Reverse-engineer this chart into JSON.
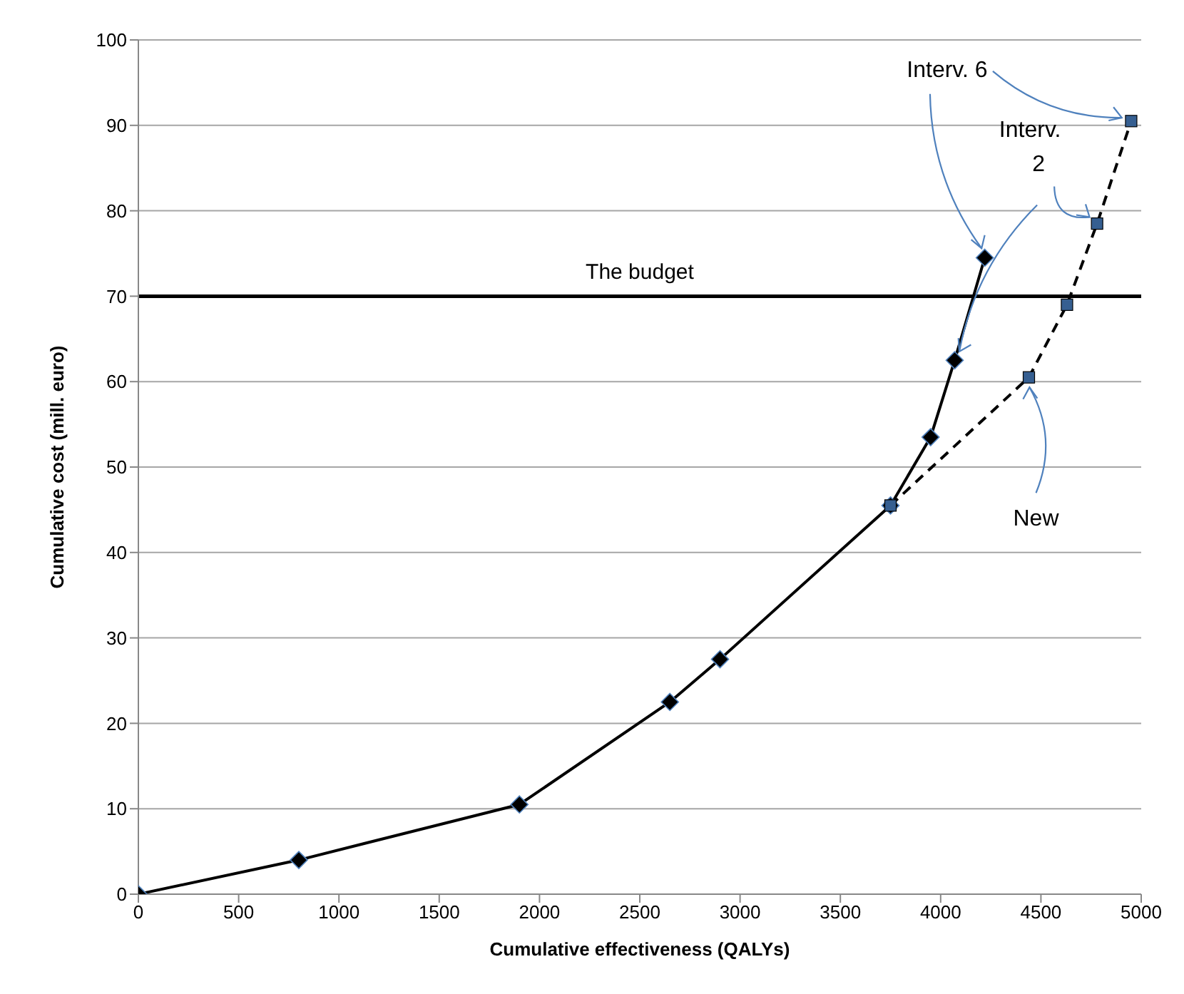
{
  "chart_data": {
    "type": "line",
    "xlabel": "Cumulative effectiveness (QALYs)",
    "ylabel": "Cumulative cost (mill. euro)",
    "xlim": [
      0,
      5000
    ],
    "xticks": [
      0,
      500,
      1000,
      1500,
      2000,
      2500,
      3000,
      3500,
      4000,
      4500,
      5000
    ],
    "ylim": [
      0,
      100
    ],
    "yticks": [
      0,
      10,
      20,
      30,
      40,
      50,
      60,
      70,
      80,
      90,
      100
    ],
    "grid": "y",
    "series": [
      {
        "color": "#000000",
        "marker": "diamond",
        "line_style": "solid",
        "x": [
          0,
          800,
          1900,
          2650,
          2900,
          3750,
          3950,
          4070,
          4220
        ],
        "values": [
          0,
          4,
          10.5,
          22.5,
          27.5,
          45.5,
          53.5,
          62.5,
          74.5
        ]
      },
      {
        "color": "#000000",
        "marker": "square",
        "line_style": "dashed",
        "x": [
          3750,
          4440,
          4630,
          4780,
          4950
        ],
        "values": [
          45.5,
          60.5,
          69,
          78.5,
          90.5
        ]
      }
    ],
    "ref_lines": [
      {
        "axis": "y",
        "value": 70,
        "label": "The budget",
        "color": "#000000"
      }
    ],
    "annotations": [
      {
        "text": "Interv. 6",
        "x": 4950,
        "y": 90.5
      },
      {
        "text": "Interv. 2",
        "x": 4780,
        "y": 78.5
      },
      {
        "text": "New",
        "x": 4440,
        "y": 60.5
      }
    ]
  }
}
